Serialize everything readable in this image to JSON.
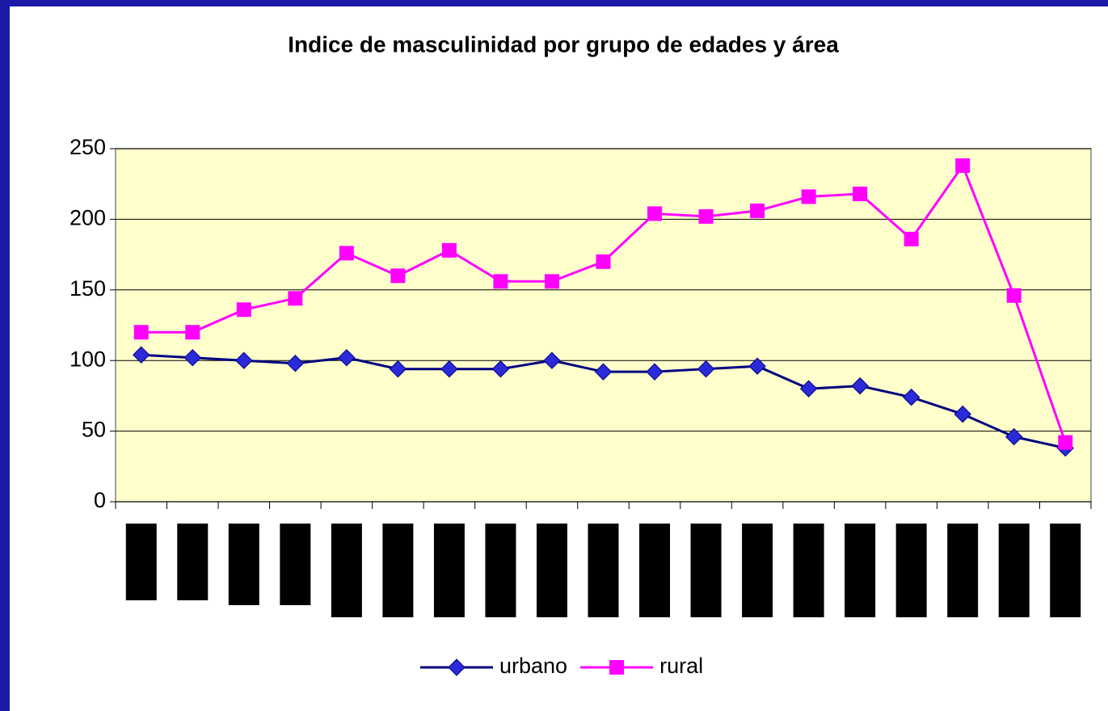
{
  "chart_data": {
    "type": "line",
    "title": "Indice de masculinidad por grupo de edades y área",
    "categories": [
      null,
      null,
      null,
      null,
      null,
      null,
      null,
      null,
      null,
      null,
      null,
      null,
      null,
      null,
      null,
      null,
      null,
      null,
      null
    ],
    "series": [
      {
        "name": "urbano",
        "color": "#000080",
        "marker": "diamond",
        "values": [
          104,
          102,
          100,
          98,
          102,
          94,
          94,
          94,
          100,
          92,
          92,
          94,
          96,
          80,
          82,
          74,
          62,
          46,
          38
        ]
      },
      {
        "name": "rural",
        "color": "#FF00FF",
        "marker": "square",
        "values": [
          120,
          120,
          136,
          144,
          176,
          160,
          178,
          156,
          156,
          170,
          204,
          202,
          206,
          216,
          218,
          186,
          238,
          146,
          42
        ]
      }
    ],
    "ylim": [
      0,
      250
    ],
    "yticks": [
      0,
      50,
      100,
      150,
      200,
      250
    ],
    "grid": true,
    "legend": "bottom"
  }
}
